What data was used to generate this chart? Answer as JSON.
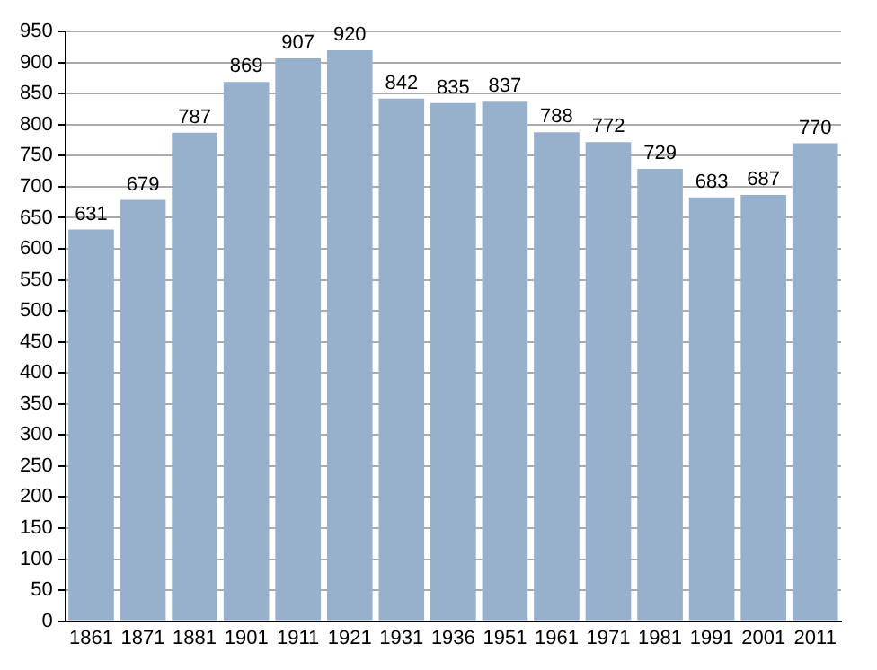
{
  "chart_data": {
    "type": "bar",
    "categories": [
      "1861",
      "1871",
      "1881",
      "1901",
      "1911",
      "1921",
      "1931",
      "1936",
      "1951",
      "1961",
      "1971",
      "1981",
      "1991",
      "2001",
      "2011"
    ],
    "values": [
      631,
      679,
      787,
      869,
      907,
      920,
      842,
      835,
      837,
      788,
      772,
      729,
      683,
      687,
      770
    ],
    "color": "#97b0cb",
    "ylim": [
      0,
      950
    ],
    "yticks": [
      0,
      50,
      100,
      150,
      200,
      250,
      300,
      350,
      400,
      450,
      500,
      550,
      600,
      650,
      700,
      750,
      800,
      850,
      900,
      950
    ],
    "grid": "y",
    "data_labels": true
  }
}
